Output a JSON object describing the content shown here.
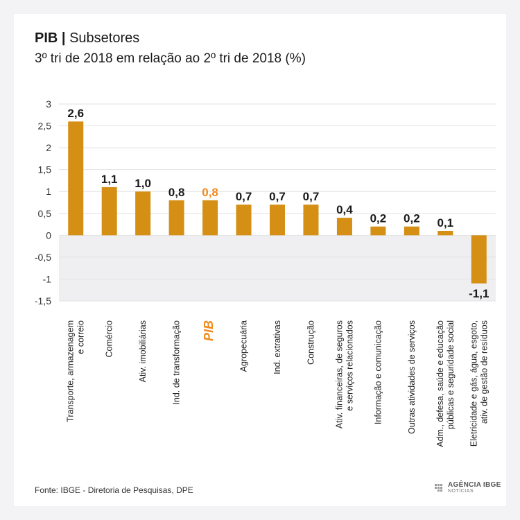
{
  "header": {
    "title_bold": "PIB |",
    "title_rest": "Subsetores",
    "subtitle": "3º tri de 2018 em relação ao 2º tri de 2018 (%)"
  },
  "footer": {
    "source": "Fonte: IBGE - Diretoria de Pesquisas, DPE",
    "logo_top": "AGÊNCIA IBGE",
    "logo_bottom": "NOTÍCIAS"
  },
  "colors": {
    "bar": "#d48f14",
    "highlight": "#f08a1c",
    "negative_band": "#efeff1",
    "grid": "#e2e2e2"
  },
  "chart_data": {
    "type": "bar",
    "title": "PIB | Subsetores",
    "subtitle": "3º tri de 2018 em relação ao 2º tri de 2018 (%)",
    "categories": [
      "Transporte, armazenagem e correio",
      "Comércio",
      "Ativ. imobiliárias",
      "Ind. de transformação",
      "PIB",
      "Agropecuária",
      "Ind. extrativas",
      "Construção",
      "Ativ. financeiras, de seguros e serviços relacionados",
      "Informação e comunicação",
      "Outras atividades de serviços",
      "Adm., defesa, saúde e educação públicas e seguridade social",
      "Eletricidade e gás, água, esgoto, ativ. de gestão de resíduos"
    ],
    "category_lines": [
      [
        "Transporte, armazenagem",
        "e correio"
      ],
      [
        "Comércio"
      ],
      [
        "Ativ. imobiliárias"
      ],
      [
        "Ind. de transformação"
      ],
      [
        "PIB"
      ],
      [
        "Agropecuária"
      ],
      [
        "Ind. extrativas"
      ],
      [
        "Construção"
      ],
      [
        "Ativ. financeiras, de seguros",
        "e serviços relacionados"
      ],
      [
        "Informação e comunicação"
      ],
      [
        "Outras atividades de serviços"
      ],
      [
        "Adm., defesa, saúde e educação",
        "públicas e seguridade social"
      ],
      [
        "Eletricidade e gás, água, esgoto,",
        "ativ. de gestão de resíduos"
      ]
    ],
    "values": [
      2.6,
      1.1,
      1.0,
      0.8,
      0.8,
      0.7,
      0.7,
      0.7,
      0.4,
      0.2,
      0.2,
      0.1,
      -1.1
    ],
    "value_labels": [
      "2,6",
      "1,1",
      "1,0",
      "0,8",
      "0,8",
      "0,7",
      "0,7",
      "0,7",
      "0,4",
      "0,2",
      "0,2",
      "0,1",
      "-1,1"
    ],
    "highlight_category": "PIB",
    "ylim": [
      -1.5,
      3
    ],
    "yticks": [
      3,
      2.5,
      2,
      1.5,
      1,
      0.5,
      0,
      -0.5,
      -1,
      -1.5
    ],
    "ytick_labels": [
      "3",
      "2,5",
      "2",
      "1,5",
      "1",
      "0,5",
      "0",
      "-0,5",
      "-1",
      "-1,5"
    ],
    "grid": true,
    "xlabel": "",
    "ylabel": ""
  }
}
